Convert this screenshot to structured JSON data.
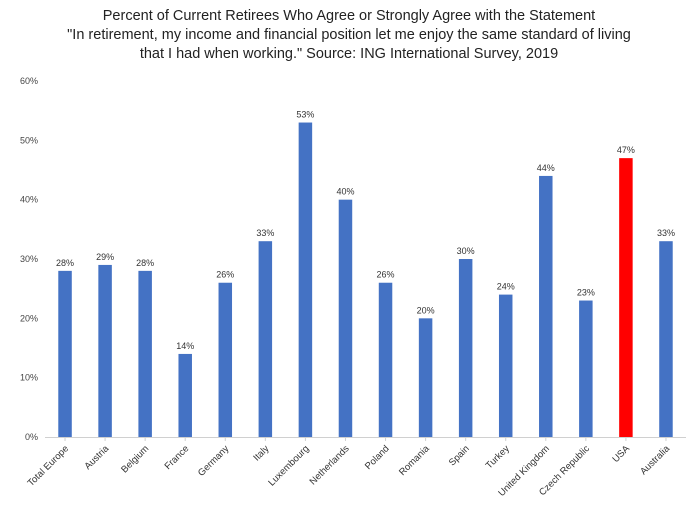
{
  "chart_data": {
    "type": "bar",
    "title_lines": [
      "Percent of Current Retirees Who Agree or Strongly Agree with the Statement",
      "\"In retirement, my income and financial position let me enjoy the same standard of living",
      "that I had when working.\" Source: ING International Survey, 2019"
    ],
    "categories": [
      "Total Europe",
      "Austria",
      "Belgium",
      "France",
      "Germany",
      "Italy",
      "Luxembourg",
      "Netherlands",
      "Poland",
      "Romania",
      "Spain",
      "Turkey",
      "United Kingdom",
      "Czech Republic",
      "USA",
      "Australia"
    ],
    "values": [
      28,
      29,
      28,
      14,
      26,
      33,
      53,
      40,
      26,
      20,
      30,
      24,
      44,
      23,
      47,
      33
    ],
    "data_labels": [
      "28%",
      "29%",
      "28%",
      "14%",
      "26%",
      "33%",
      "53%",
      "40%",
      "26%",
      "20%",
      "30%",
      "24%",
      "44%",
      "23%",
      "47%",
      "33%"
    ],
    "ylim": [
      0,
      60
    ],
    "yticks": [
      0,
      10,
      20,
      30,
      40,
      50,
      60
    ],
    "ytick_labels": [
      "0%",
      "10%",
      "20%",
      "30%",
      "40%",
      "50%",
      "60%"
    ],
    "xlabel": "",
    "ylabel": "",
    "grid": false,
    "colors": {
      "default": "#4472C4",
      "highlight": "#FF0000",
      "highlight_category": "USA"
    }
  }
}
